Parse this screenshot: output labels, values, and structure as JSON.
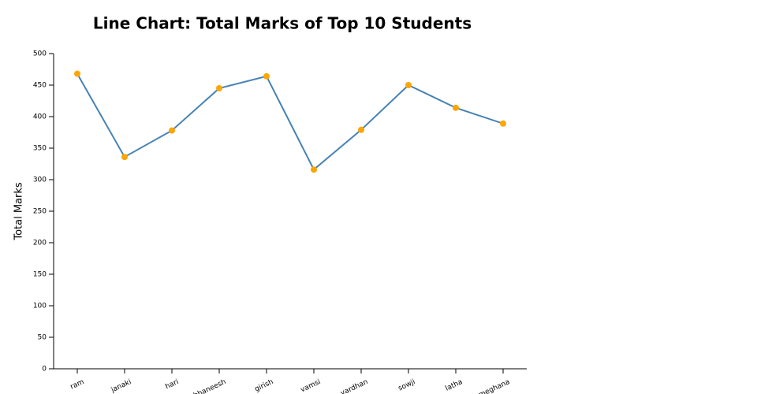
{
  "chart_data": {
    "type": "line",
    "title": "Line Chart: Total Marks of Top 10 Students",
    "y_label": "Total Marks",
    "categories": [
      "ram",
      "janaki",
      "hari",
      "bhaneesh",
      "girish",
      "vamsi",
      "vardhan",
      "sowji",
      "latha",
      "meghana"
    ],
    "series": [
      {
        "name": "Total Marks",
        "color": "#4682b4",
        "marker_color": "#ffa500",
        "values": [
          468,
          336,
          378,
          445,
          464,
          316,
          379,
          450,
          414,
          389
        ]
      }
    ],
    "ylim": [
      0,
      500
    ],
    "yticks": [
      0,
      50,
      100,
      150,
      200,
      250,
      300,
      350,
      400,
      450,
      500
    ]
  }
}
